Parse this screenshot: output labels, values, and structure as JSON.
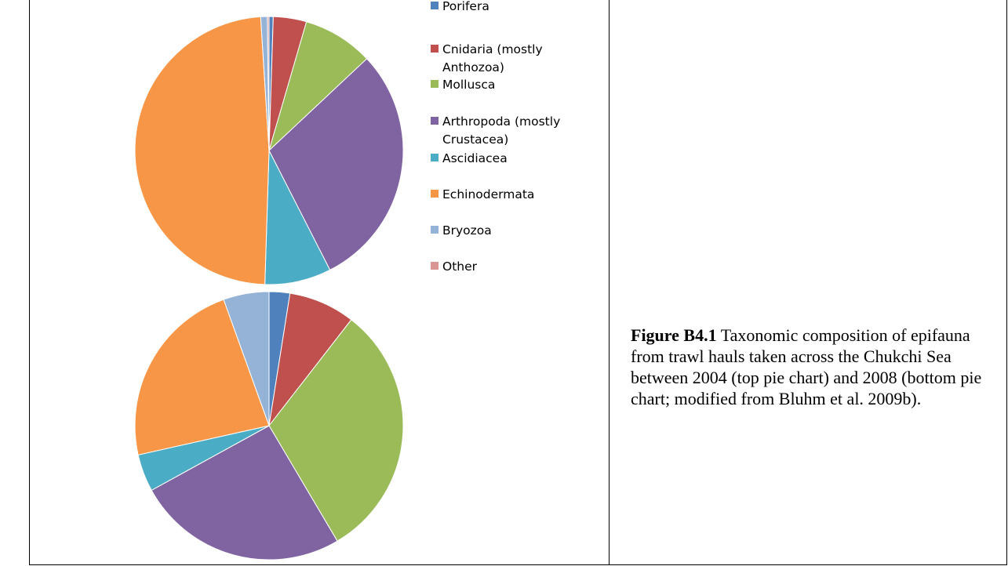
{
  "chart_data": [
    {
      "type": "pie",
      "name": "2004",
      "start_angle_deg": 0,
      "categories": [
        "Porifera",
        "Cnidaria (mostly Anthozoa)",
        "Mollusca",
        "Arthropoda (mostly Crustacea)",
        "Ascidiacea",
        "Echinodermata",
        "Bryozoa",
        "Other"
      ],
      "values": [
        0.5,
        4,
        8.5,
        29.5,
        8,
        48.5,
        0.8,
        0.2
      ],
      "colors": [
        "#4F81BD",
        "#C0504D",
        "#9BBB59",
        "#8064A2",
        "#4BACC6",
        "#F79646",
        "#95B3D7",
        "#D99694"
      ]
    },
    {
      "type": "pie",
      "name": "2008",
      "start_angle_deg": 0,
      "categories": [
        "Porifera",
        "Cnidaria (mostly Anthozoa)",
        "Mollusca",
        "Arthropoda (mostly Crustacea)",
        "Ascidiacea",
        "Echinodermata",
        "Bryozoa",
        "Other"
      ],
      "values": [
        2.5,
        8,
        31,
        25.5,
        4.5,
        23,
        5.5,
        0
      ],
      "colors": [
        "#4F81BD",
        "#C0504D",
        "#9BBB59",
        "#8064A2",
        "#4BACC6",
        "#F79646",
        "#95B3D7",
        "#D99694"
      ]
    }
  ],
  "legend": {
    "items": [
      {
        "lines": [
          "Porifera"
        ],
        "color": "#4F81BD"
      },
      {
        "lines": [
          "Cnidaria (mostly",
          "Anthozoa)"
        ],
        "color": "#C0504D"
      },
      {
        "lines": [
          "Mollusca"
        ],
        "color": "#9BBB59"
      },
      {
        "lines": [
          "Arthropoda (mostly",
          "Crustacea)"
        ],
        "color": "#8064A2"
      },
      {
        "lines": [
          "Ascidiacea"
        ],
        "color": "#4BACC6"
      },
      {
        "lines": [
          "Echinodermata"
        ],
        "color": "#F79646"
      },
      {
        "lines": [
          "Bryozoa"
        ],
        "color": "#95B3D7"
      },
      {
        "lines": [
          "Other"
        ],
        "color": "#D99694"
      }
    ]
  },
  "caption": {
    "label": "Figure B4.1",
    "text": " Taxonomic composition of epifauna from trawl hauls taken across the Chukchi Sea between 2004 (top pie chart) and 2008 (bottom pie chart; modified from Bluhm et al. 2009b)."
  }
}
